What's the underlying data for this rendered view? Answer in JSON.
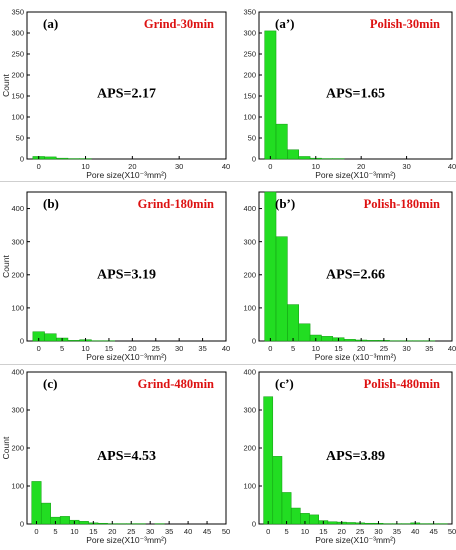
{
  "colors": {
    "bar_fill": "#22dd22",
    "bar_stroke": "#119911",
    "label_red": "#dd1111",
    "axis": "#000000"
  },
  "chart_data": [
    {
      "type": "bar",
      "panel_label": "(a)",
      "title": "Grind-30min",
      "annotation": "APS=2.17",
      "xlabel": "Pore size(X10⁻³mm²)",
      "ylabel": "Count",
      "xlim": [
        -2.5,
        40
      ],
      "ylim": [
        0,
        350
      ],
      "xticks": [
        0,
        10,
        20,
        30,
        40
      ],
      "yticks": [
        0,
        50,
        100,
        150,
        200,
        250,
        300,
        350
      ],
      "bin_width": 2.5,
      "bin_centers": [
        0,
        2.5,
        5,
        7.5,
        10,
        12.5
      ],
      "values": [
        6,
        5,
        2,
        1,
        1,
        0
      ]
    },
    {
      "type": "bar",
      "panel_label": "(a’)",
      "title": "Polish-30min",
      "annotation": "APS=1.65",
      "xlabel": "Pore size(X10⁻³mm²)",
      "ylabel": "",
      "xlim": [
        -2.5,
        40
      ],
      "ylim": [
        0,
        350
      ],
      "xticks": [
        0,
        10,
        20,
        30,
        40
      ],
      "yticks": [
        0,
        50,
        100,
        150,
        200,
        250,
        300,
        350
      ],
      "bin_width": 2.5,
      "bin_centers": [
        0,
        2.5,
        5,
        7.5,
        10,
        12.5,
        15,
        17.5
      ],
      "values": [
        305,
        83,
        22,
        6,
        2,
        1,
        1,
        0
      ]
    },
    {
      "type": "bar",
      "panel_label": "(b)",
      "title": "Grind-180min",
      "annotation": "APS=3.19",
      "xlabel": "Pore size(X10⁻³mm²)",
      "ylabel": "Count",
      "xlim": [
        -2.5,
        40
      ],
      "ylim": [
        0,
        450
      ],
      "xticks": [
        0,
        5,
        10,
        15,
        20,
        25,
        30,
        35,
        40
      ],
      "yticks": [
        0,
        100,
        200,
        300,
        400
      ],
      "bin_width": 2.5,
      "bin_centers": [
        0,
        2.5,
        5,
        7.5,
        10,
        12.5,
        15
      ],
      "values": [
        28,
        22,
        9,
        2,
        4,
        1,
        1
      ]
    },
    {
      "type": "bar",
      "panel_label": "(b’)",
      "title": "Polish-180min",
      "annotation": "APS=2.66",
      "xlabel": "Pore size (x10⁻³mm²)",
      "ylabel": "",
      "xlim": [
        -2.5,
        40
      ],
      "ylim": [
        0,
        450
      ],
      "xticks": [
        0,
        5,
        10,
        15,
        20,
        25,
        30,
        35,
        40
      ],
      "yticks": [
        0,
        100,
        200,
        300,
        400
      ],
      "bin_width": 2.5,
      "bin_centers": [
        0,
        2.5,
        5,
        7.5,
        10,
        12.5,
        15,
        17.5,
        20,
        22.5,
        25,
        27.5,
        30,
        32.5,
        35
      ],
      "values": [
        455,
        315,
        110,
        52,
        18,
        14,
        10,
        5,
        3,
        2,
        2,
        1,
        1,
        1,
        1
      ]
    },
    {
      "type": "bar",
      "panel_label": "(c)",
      "title": "Grind-480min",
      "annotation": "APS=4.53",
      "xlabel": "Pore size(X10⁻³mm²)",
      "ylabel": "Count",
      "xlim": [
        -2.5,
        50
      ],
      "ylim": [
        0,
        400
      ],
      "xticks": [
        0,
        5,
        10,
        15,
        20,
        25,
        30,
        35,
        40,
        45,
        50
      ],
      "yticks": [
        0,
        100,
        200,
        300,
        400
      ],
      "bin_width": 2.5,
      "bin_centers": [
        0,
        2.5,
        5,
        7.5,
        10,
        12.5,
        15,
        17.5,
        20,
        22.5,
        25,
        27.5,
        30,
        32.5,
        35,
        37.5,
        40,
        42.5,
        45,
        47.5
      ],
      "values": [
        112,
        55,
        18,
        20,
        10,
        7,
        3,
        2,
        1,
        1,
        1,
        1,
        0,
        1,
        0,
        0,
        0,
        0,
        0,
        0
      ]
    },
    {
      "type": "bar",
      "panel_label": "(c’)",
      "title": "Polish-480min",
      "annotation": "APS=3.89",
      "xlabel": "Pore size(X10⁻³mm²)",
      "ylabel": "",
      "xlim": [
        -2.5,
        50
      ],
      "ylim": [
        0,
        400
      ],
      "xticks": [
        0,
        5,
        10,
        15,
        20,
        25,
        30,
        35,
        40,
        45,
        50
      ],
      "yticks": [
        0,
        100,
        200,
        300,
        400
      ],
      "bin_width": 2.5,
      "bin_centers": [
        0,
        2.5,
        5,
        7.5,
        10,
        12.5,
        15,
        17.5,
        20,
        22.5,
        25,
        27.5,
        30,
        32.5,
        35,
        37.5,
        40,
        42.5,
        45,
        47.5
      ],
      "values": [
        335,
        178,
        83,
        42,
        28,
        24,
        9,
        6,
        5,
        4,
        3,
        2,
        2,
        1,
        1,
        1,
        3,
        1,
        1,
        1
      ]
    }
  ]
}
